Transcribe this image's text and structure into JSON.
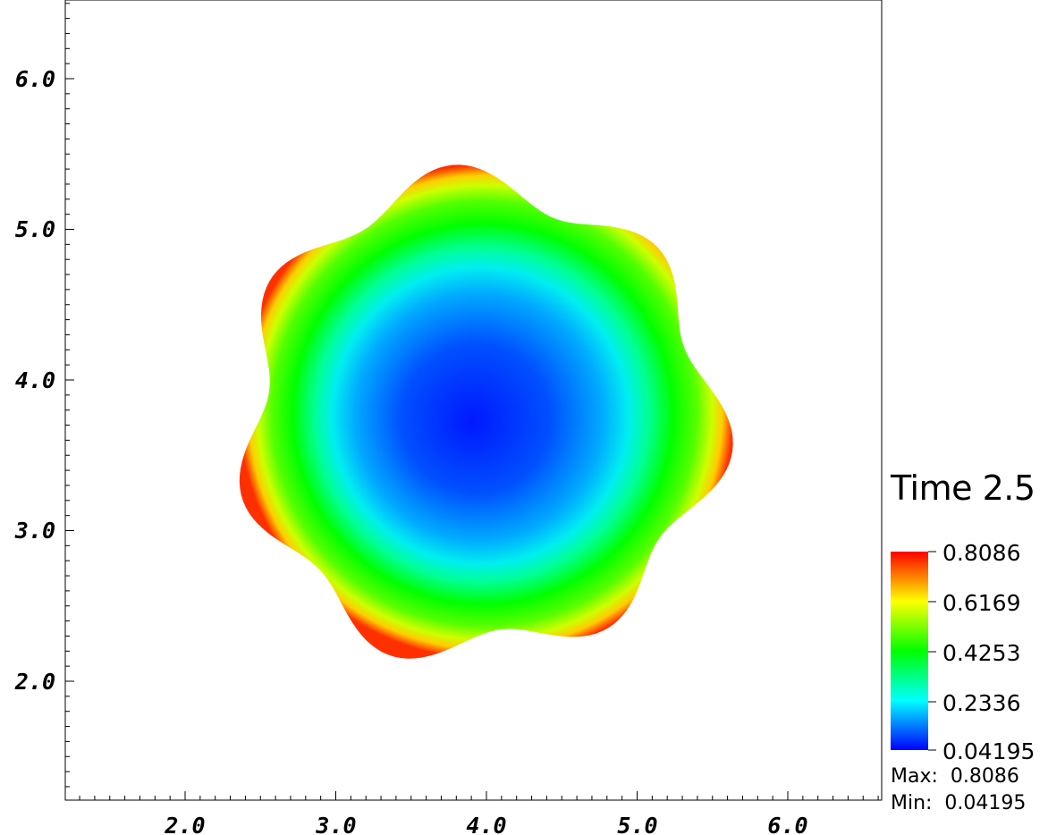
{
  "chart_data": {
    "type": "heatmap",
    "title": "",
    "xlabel": "",
    "ylabel": "",
    "xlim": [
      1.2,
      6.6
    ],
    "ylim": [
      1.2,
      6.5
    ],
    "x_ticks": [
      "2.0",
      "3.0",
      "4.0",
      "5.0",
      "6.0"
    ],
    "y_ticks": [
      "2.0",
      "3.0",
      "4.0",
      "5.0",
      "6.0"
    ],
    "field_center": [
      3.95,
      3.75
    ],
    "field_shape": "wavy-edged disk, blue interior rising to red near boundary",
    "boundary_mean_radius": 1.55,
    "boundary_lobes": 7,
    "colormap": [
      "#0000ff",
      "#00ffff",
      "#00ff00",
      "#ffff00",
      "#ff0000"
    ],
    "legend": {
      "title": "Time 2.5",
      "labels": [
        "0.8086",
        "0.6169",
        "0.4253",
        "0.2336",
        "0.04195"
      ],
      "min": 0.04195,
      "max": 0.8086,
      "max_text": "Max:  0.8086",
      "min_text": "Min:  0.04195"
    }
  }
}
